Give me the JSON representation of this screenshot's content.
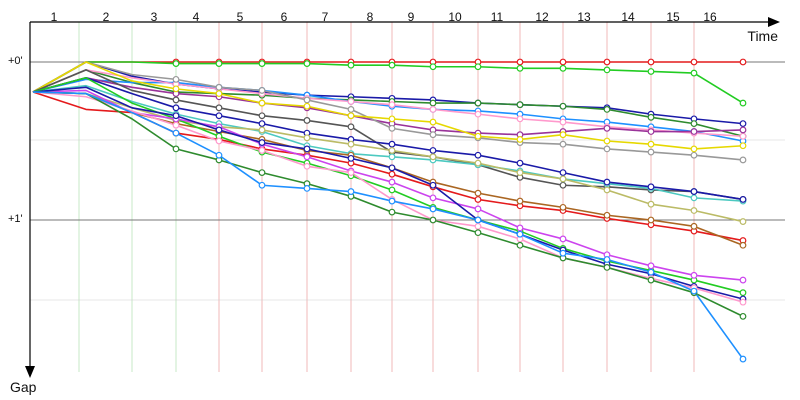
{
  "chart_data": {
    "type": "line",
    "xlabel": "Time",
    "ylabel": "Gap",
    "lap_labels": [
      "1",
      "2",
      "3",
      "4",
      "5",
      "6",
      "7",
      "8",
      "9",
      "10",
      "11",
      "12",
      "13",
      "14",
      "15",
      "16"
    ],
    "y_ticks": [
      "+0'",
      "+1'"
    ],
    "grid": true,
    "colors": {
      "grid_major": "#c7e8c7",
      "grid_minor": "#f0b8b8",
      "hline": "#777777",
      "axis": "#000000"
    },
    "series": [
      {
        "color": "#e41a1c",
        "values": [
          0.0,
          0.0,
          0.0,
          0.0,
          0.0,
          0.0,
          0.0,
          0.0,
          0.0,
          0.0,
          0.0,
          0.0,
          0.0,
          0.0,
          0.0,
          0.0
        ]
      },
      {
        "color": "#22cc22",
        "values": [
          0.0,
          0.0,
          0.01,
          0.01,
          0.01,
          0.01,
          0.02,
          0.02,
          0.03,
          0.03,
          0.04,
          0.04,
          0.05,
          0.06,
          0.07,
          0.26
        ]
      },
      {
        "color": "#1a1aa8",
        "values": [
          0.0,
          0.09,
          0.14,
          0.17,
          0.19,
          0.21,
          0.22,
          0.23,
          0.24,
          0.26,
          0.27,
          0.28,
          0.29,
          0.33,
          0.36,
          0.39
        ]
      },
      {
        "color": "#2e8b2e",
        "values": [
          0.05,
          0.13,
          0.19,
          0.2,
          0.21,
          0.23,
          0.24,
          0.25,
          0.26,
          0.26,
          0.27,
          0.28,
          0.3,
          0.35,
          0.39,
          0.47
        ]
      },
      {
        "color": "#1e90ff",
        "values": [
          0.11,
          0.13,
          0.13,
          0.16,
          0.18,
          0.21,
          0.25,
          0.28,
          0.3,
          0.31,
          0.33,
          0.36,
          0.38,
          0.41,
          0.44,
          0.5
        ]
      },
      {
        "color": "#ff99cc",
        "values": [
          0.05,
          0.1,
          0.14,
          0.17,
          0.2,
          0.23,
          0.25,
          0.27,
          0.3,
          0.33,
          0.36,
          0.38,
          0.41,
          0.43,
          0.45,
          0.47
        ]
      },
      {
        "color": "#993399",
        "values": [
          0.1,
          0.16,
          0.2,
          0.22,
          0.26,
          0.29,
          0.34,
          0.39,
          0.43,
          0.45,
          0.46,
          0.44,
          0.42,
          0.44,
          0.44,
          0.43
        ]
      },
      {
        "color": "#999999",
        "values": [
          0.0,
          0.08,
          0.11,
          0.16,
          0.18,
          0.24,
          0.3,
          0.42,
          0.46,
          0.48,
          0.51,
          0.52,
          0.55,
          0.57,
          0.59,
          0.62
        ]
      },
      {
        "color": "#e6d800",
        "values": [
          0.0,
          0.12,
          0.17,
          0.2,
          0.26,
          0.28,
          0.34,
          0.36,
          0.38,
          0.47,
          0.49,
          0.46,
          0.5,
          0.52,
          0.55,
          0.53
        ]
      },
      {
        "color": "#555555",
        "values": [
          0.05,
          0.18,
          0.24,
          0.29,
          0.34,
          0.37,
          0.41,
          0.57,
          0.6,
          0.65,
          0.73,
          0.78,
          0.79,
          0.81,
          0.82,
          0.87
        ]
      },
      {
        "color": "#4cc9c0",
        "values": [
          0.15,
          0.25,
          0.33,
          0.39,
          0.44,
          0.53,
          0.58,
          0.6,
          0.62,
          0.65,
          0.69,
          0.74,
          0.77,
          0.8,
          0.86,
          0.88
        ]
      },
      {
        "color": "#1a1aa8",
        "values": [
          0.1,
          0.2,
          0.29,
          0.34,
          0.39,
          0.45,
          0.49,
          0.52,
          0.56,
          0.59,
          0.64,
          0.7,
          0.76,
          0.79,
          0.82,
          0.87
        ]
      },
      {
        "color": "#bbbb66",
        "values": [
          0.2,
          0.29,
          0.37,
          0.41,
          0.43,
          0.48,
          0.52,
          0.56,
          0.6,
          0.64,
          0.7,
          0.74,
          0.81,
          0.9,
          0.94,
          1.01
        ]
      },
      {
        "color": "#e41a1c",
        "values": [
          0.3,
          0.32,
          0.45,
          0.49,
          0.55,
          0.59,
          0.64,
          0.71,
          0.79,
          0.87,
          0.91,
          0.94,
          0.99,
          1.03,
          1.07,
          1.13
        ]
      },
      {
        "color": "#aa6622",
        "values": [
          0.2,
          0.32,
          0.39,
          0.44,
          0.49,
          0.56,
          0.59,
          0.67,
          0.76,
          0.83,
          0.88,
          0.92,
          0.97,
          1.0,
          1.04,
          1.16
        ]
      },
      {
        "color": "#22cc22",
        "values": [
          0.1,
          0.26,
          0.36,
          0.47,
          0.57,
          0.64,
          0.72,
          0.81,
          0.92,
          1.0,
          1.07,
          1.18,
          1.26,
          1.32,
          1.38,
          1.46
        ]
      },
      {
        "color": "#cc44ee",
        "values": [
          0.18,
          0.32,
          0.36,
          0.41,
          0.52,
          0.6,
          0.69,
          0.76,
          0.86,
          0.93,
          1.05,
          1.12,
          1.22,
          1.29,
          1.35,
          1.38
        ]
      },
      {
        "color": "#1a1aa8",
        "values": [
          0.16,
          0.29,
          0.34,
          0.43,
          0.51,
          0.55,
          0.61,
          0.67,
          0.78,
          1.0,
          1.09,
          1.19,
          1.28,
          1.34,
          1.42,
          1.5
        ]
      },
      {
        "color": "#ff99cc",
        "values": [
          0.22,
          0.31,
          0.4,
          0.5,
          0.56,
          0.66,
          0.7,
          0.87,
          1.0,
          1.04,
          1.12,
          1.24,
          1.3,
          1.37,
          1.43,
          1.52
        ]
      },
      {
        "color": "#2e8b2e",
        "values": [
          0.2,
          0.36,
          0.55,
          0.62,
          0.7,
          0.77,
          0.85,
          0.95,
          1.0,
          1.08,
          1.16,
          1.24,
          1.3,
          1.38,
          1.46,
          1.61
        ]
      },
      {
        "color": "#1e90ff",
        "values": [
          0.2,
          0.32,
          0.45,
          0.59,
          0.78,
          0.8,
          0.82,
          0.88,
          0.93,
          1.0,
          1.09,
          1.21,
          1.25,
          1.33,
          1.45,
          1.88
        ]
      }
    ]
  }
}
